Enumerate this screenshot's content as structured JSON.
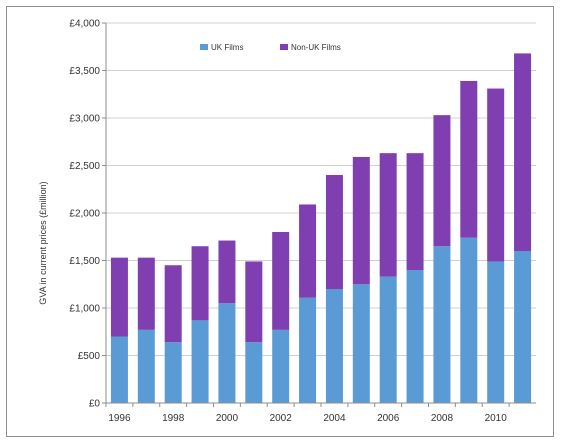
{
  "chart_data": {
    "type": "bar",
    "stacked": true,
    "title": "",
    "xlabel": "",
    "ylabel": "GVA in current prices (£million)",
    "categories": [
      "1996",
      "1997",
      "1998",
      "1999",
      "2000",
      "2001",
      "2002",
      "2003",
      "2004",
      "2005",
      "2006",
      "2007",
      "2008",
      "2009",
      "2010",
      "2011"
    ],
    "x_tick_labels": [
      "1996",
      "1998",
      "2000",
      "2002",
      "2004",
      "2006",
      "2008",
      "2010"
    ],
    "y_tick_labels": [
      "£0",
      "£500",
      "£1,000",
      "£1,500",
      "£2,000",
      "£2,500",
      "£3,000",
      "£3,500",
      "£4,000"
    ],
    "ylim": [
      0,
      4000
    ],
    "legend_position": "top",
    "series": [
      {
        "name": "UK Films",
        "color": "#5b9bd5",
        "values": [
          700,
          770,
          640,
          870,
          1050,
          640,
          770,
          1110,
          1200,
          1250,
          1330,
          1400,
          1650,
          1740,
          1490,
          1600
        ]
      },
      {
        "name": "Non-UK Films",
        "color": "#7f3fb0",
        "values": [
          830,
          760,
          810,
          780,
          660,
          850,
          1030,
          980,
          1200,
          1340,
          1300,
          1230,
          1380,
          1650,
          1820,
          2080
        ]
      }
    ]
  }
}
